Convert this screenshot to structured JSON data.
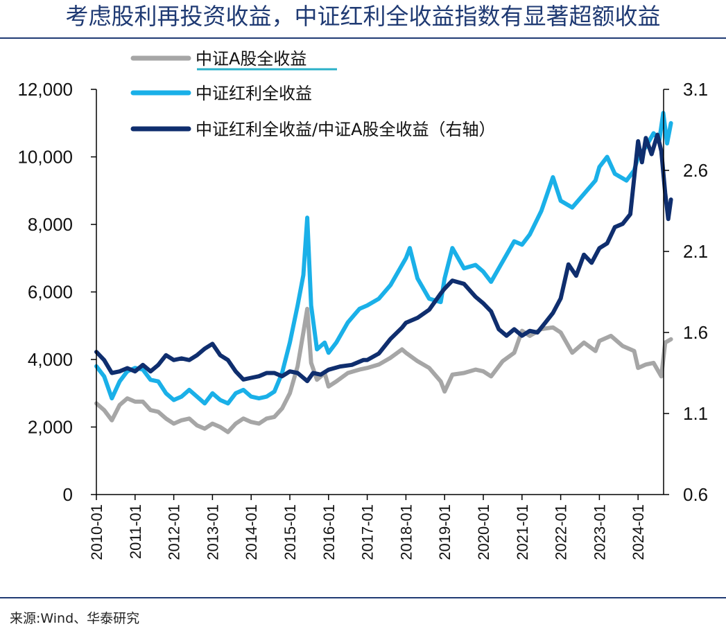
{
  "title": "考虑股利再投资收益，中证红利全收益指数有显著超额收益",
  "source": "来源:Wind、华泰研究",
  "chart_data": {
    "type": "line",
    "title": "考虑股利再投资收益，中证红利全收益指数有显著超额收益",
    "left_axis": {
      "ylim": [
        0,
        12000
      ],
      "ticks": [
        "0",
        "2,000",
        "4,000",
        "6,000",
        "8,000",
        "10,000",
        "12,000"
      ],
      "tick_values": [
        0,
        2000,
        4000,
        6000,
        8000,
        10000,
        12000
      ]
    },
    "right_axis": {
      "ylim": [
        0.6,
        3.1
      ],
      "ticks": [
        "0.6",
        "1.1",
        "1.6",
        "2.1",
        "2.6",
        "3.1"
      ],
      "tick_values": [
        0.6,
        1.1,
        1.6,
        2.1,
        2.6,
        3.1
      ]
    },
    "x_ticks": [
      "2010-01",
      "2011-01",
      "2012-01",
      "2013-01",
      "2014-01",
      "2015-01",
      "2016-01",
      "2017-01",
      "2018-01",
      "2019-01",
      "2020-01",
      "2021-01",
      "2022-01",
      "2023-01",
      "2024-01"
    ],
    "x_range": [
      2010.0,
      2024.85
    ],
    "grid": false,
    "legend_position": "top-left",
    "series": [
      {
        "name": "中证A股全收益",
        "axis": "left",
        "color": "#a6a6a6",
        "points": [
          [
            2010.0,
            2700
          ],
          [
            2010.2,
            2500
          ],
          [
            2010.4,
            2200
          ],
          [
            2010.6,
            2650
          ],
          [
            2010.8,
            2850
          ],
          [
            2011.0,
            2750
          ],
          [
            2011.2,
            2750
          ],
          [
            2011.4,
            2500
          ],
          [
            2011.6,
            2450
          ],
          [
            2011.8,
            2250
          ],
          [
            2012.0,
            2100
          ],
          [
            2012.2,
            2200
          ],
          [
            2012.4,
            2250
          ],
          [
            2012.6,
            2050
          ],
          [
            2012.8,
            1950
          ],
          [
            2013.0,
            2100
          ],
          [
            2013.2,
            2000
          ],
          [
            2013.4,
            1850
          ],
          [
            2013.6,
            2100
          ],
          [
            2013.8,
            2250
          ],
          [
            2014.0,
            2150
          ],
          [
            2014.2,
            2100
          ],
          [
            2014.4,
            2250
          ],
          [
            2014.6,
            2300
          ],
          [
            2014.8,
            2550
          ],
          [
            2015.0,
            3000
          ],
          [
            2015.2,
            3800
          ],
          [
            2015.35,
            4800
          ],
          [
            2015.45,
            5500
          ],
          [
            2015.55,
            3900
          ],
          [
            2015.7,
            3400
          ],
          [
            2015.9,
            3600
          ],
          [
            2016.0,
            3200
          ],
          [
            2016.2,
            3350
          ],
          [
            2016.5,
            3600
          ],
          [
            2016.8,
            3700
          ],
          [
            2017.0,
            3750
          ],
          [
            2017.3,
            3850
          ],
          [
            2017.6,
            4050
          ],
          [
            2017.9,
            4300
          ],
          [
            2018.0,
            4200
          ],
          [
            2018.3,
            3950
          ],
          [
            2018.6,
            3750
          ],
          [
            2018.9,
            3350
          ],
          [
            2019.0,
            3050
          ],
          [
            2019.2,
            3550
          ],
          [
            2019.5,
            3600
          ],
          [
            2019.8,
            3700
          ],
          [
            2020.0,
            3650
          ],
          [
            2020.2,
            3500
          ],
          [
            2020.5,
            3950
          ],
          [
            2020.8,
            4200
          ],
          [
            2021.0,
            4850
          ],
          [
            2021.2,
            4700
          ],
          [
            2021.5,
            4900
          ],
          [
            2021.8,
            4950
          ],
          [
            2022.0,
            4800
          ],
          [
            2022.3,
            4200
          ],
          [
            2022.6,
            4500
          ],
          [
            2022.9,
            4250
          ],
          [
            2023.0,
            4550
          ],
          [
            2023.3,
            4700
          ],
          [
            2023.6,
            4400
          ],
          [
            2023.9,
            4250
          ],
          [
            2024.0,
            3750
          ],
          [
            2024.2,
            3850
          ],
          [
            2024.4,
            3900
          ],
          [
            2024.6,
            3500
          ],
          [
            2024.7,
            4500
          ],
          [
            2024.85,
            4600
          ]
        ]
      },
      {
        "name": "中证红利全收益",
        "axis": "left",
        "color": "#1ab0e8",
        "points": [
          [
            2010.0,
            3800
          ],
          [
            2010.2,
            3500
          ],
          [
            2010.4,
            2850
          ],
          [
            2010.6,
            3350
          ],
          [
            2010.8,
            3650
          ],
          [
            2011.0,
            3750
          ],
          [
            2011.2,
            3700
          ],
          [
            2011.4,
            3400
          ],
          [
            2011.6,
            3350
          ],
          [
            2011.8,
            3000
          ],
          [
            2012.0,
            2800
          ],
          [
            2012.2,
            2900
          ],
          [
            2012.4,
            3100
          ],
          [
            2012.6,
            2900
          ],
          [
            2012.8,
            2700
          ],
          [
            2013.0,
            3000
          ],
          [
            2013.2,
            2800
          ],
          [
            2013.4,
            2700
          ],
          [
            2013.6,
            3000
          ],
          [
            2013.8,
            3100
          ],
          [
            2014.0,
            2900
          ],
          [
            2014.2,
            2850
          ],
          [
            2014.4,
            2900
          ],
          [
            2014.6,
            3050
          ],
          [
            2014.8,
            3600
          ],
          [
            2015.0,
            4500
          ],
          [
            2015.2,
            5600
          ],
          [
            2015.35,
            6500
          ],
          [
            2015.45,
            8200
          ],
          [
            2015.55,
            5600
          ],
          [
            2015.7,
            4300
          ],
          [
            2015.9,
            4500
          ],
          [
            2016.0,
            4200
          ],
          [
            2016.2,
            4500
          ],
          [
            2016.5,
            5100
          ],
          [
            2016.8,
            5500
          ],
          [
            2017.0,
            5600
          ],
          [
            2017.3,
            5800
          ],
          [
            2017.6,
            6200
          ],
          [
            2017.9,
            6800
          ],
          [
            2018.0,
            7000
          ],
          [
            2018.1,
            7300
          ],
          [
            2018.3,
            6400
          ],
          [
            2018.6,
            5800
          ],
          [
            2018.9,
            5700
          ],
          [
            2019.0,
            6400
          ],
          [
            2019.2,
            7300
          ],
          [
            2019.5,
            6700
          ],
          [
            2019.8,
            6800
          ],
          [
            2020.0,
            6600
          ],
          [
            2020.2,
            6300
          ],
          [
            2020.5,
            6900
          ],
          [
            2020.8,
            7500
          ],
          [
            2021.0,
            7400
          ],
          [
            2021.2,
            7700
          ],
          [
            2021.5,
            8400
          ],
          [
            2021.8,
            9400
          ],
          [
            2022.0,
            8700
          ],
          [
            2022.3,
            8500
          ],
          [
            2022.6,
            8900
          ],
          [
            2022.9,
            9300
          ],
          [
            2023.0,
            9700
          ],
          [
            2023.2,
            10000
          ],
          [
            2023.4,
            9500
          ],
          [
            2023.7,
            9300
          ],
          [
            2023.9,
            9600
          ],
          [
            2024.0,
            10000
          ],
          [
            2024.2,
            10300
          ],
          [
            2024.4,
            10700
          ],
          [
            2024.55,
            10500
          ],
          [
            2024.65,
            11300
          ],
          [
            2024.75,
            10400
          ],
          [
            2024.85,
            11000
          ]
        ]
      },
      {
        "name": "中证红利全收益/中证A股全收益（右轴）",
        "axis": "right",
        "color": "#0f2e6e",
        "points": [
          [
            2010.0,
            1.48
          ],
          [
            2010.2,
            1.43
          ],
          [
            2010.4,
            1.35
          ],
          [
            2010.6,
            1.36
          ],
          [
            2010.8,
            1.38
          ],
          [
            2011.0,
            1.36
          ],
          [
            2011.2,
            1.4
          ],
          [
            2011.4,
            1.36
          ],
          [
            2011.6,
            1.4
          ],
          [
            2011.8,
            1.46
          ],
          [
            2012.0,
            1.43
          ],
          [
            2012.2,
            1.44
          ],
          [
            2012.4,
            1.43
          ],
          [
            2012.6,
            1.46
          ],
          [
            2012.8,
            1.5
          ],
          [
            2013.0,
            1.53
          ],
          [
            2013.2,
            1.46
          ],
          [
            2013.4,
            1.43
          ],
          [
            2013.6,
            1.36
          ],
          [
            2013.8,
            1.31
          ],
          [
            2014.0,
            1.32
          ],
          [
            2014.2,
            1.33
          ],
          [
            2014.4,
            1.35
          ],
          [
            2014.6,
            1.35
          ],
          [
            2014.8,
            1.33
          ],
          [
            2015.0,
            1.36
          ],
          [
            2015.2,
            1.35
          ],
          [
            2015.45,
            1.3
          ],
          [
            2015.6,
            1.35
          ],
          [
            2015.8,
            1.34
          ],
          [
            2016.0,
            1.37
          ],
          [
            2016.3,
            1.39
          ],
          [
            2016.6,
            1.4
          ],
          [
            2016.9,
            1.43
          ],
          [
            2017.0,
            1.43
          ],
          [
            2017.3,
            1.47
          ],
          [
            2017.6,
            1.56
          ],
          [
            2017.9,
            1.63
          ],
          [
            2018.0,
            1.66
          ],
          [
            2018.3,
            1.69
          ],
          [
            2018.6,
            1.74
          ],
          [
            2018.9,
            1.84
          ],
          [
            2019.0,
            1.87
          ],
          [
            2019.2,
            1.92
          ],
          [
            2019.5,
            1.9
          ],
          [
            2019.8,
            1.82
          ],
          [
            2020.0,
            1.78
          ],
          [
            2020.2,
            1.73
          ],
          [
            2020.4,
            1.62
          ],
          [
            2020.6,
            1.58
          ],
          [
            2020.8,
            1.62
          ],
          [
            2021.0,
            1.58
          ],
          [
            2021.2,
            1.61
          ],
          [
            2021.4,
            1.6
          ],
          [
            2021.6,
            1.66
          ],
          [
            2021.8,
            1.72
          ],
          [
            2022.0,
            1.81
          ],
          [
            2022.2,
            2.02
          ],
          [
            2022.4,
            1.95
          ],
          [
            2022.6,
            2.08
          ],
          [
            2022.8,
            2.03
          ],
          [
            2023.0,
            2.12
          ],
          [
            2023.2,
            2.15
          ],
          [
            2023.4,
            2.25
          ],
          [
            2023.6,
            2.27
          ],
          [
            2023.8,
            2.33
          ],
          [
            2024.0,
            2.78
          ],
          [
            2024.1,
            2.65
          ],
          [
            2024.2,
            2.8
          ],
          [
            2024.35,
            2.7
          ],
          [
            2024.5,
            2.82
          ],
          [
            2024.6,
            2.72
          ],
          [
            2024.7,
            2.46
          ],
          [
            2024.78,
            2.3
          ],
          [
            2024.85,
            2.42
          ]
        ]
      }
    ]
  }
}
